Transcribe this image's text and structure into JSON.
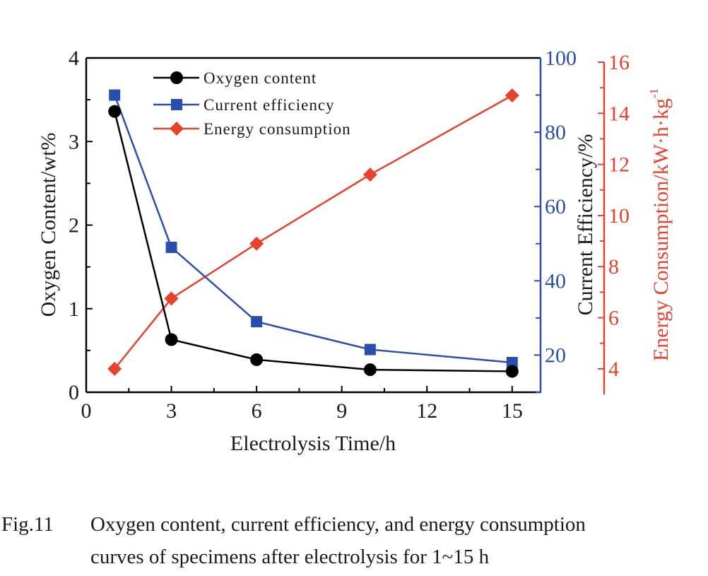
{
  "chart_data": {
    "type": "line",
    "title": "",
    "xlabel": "Electrolysis Time/h",
    "x": [
      1,
      3,
      6,
      10,
      15
    ],
    "xlim": [
      0,
      16
    ],
    "xticks": [
      0,
      3,
      6,
      9,
      12,
      15
    ],
    "xtick_labels": [
      "0",
      "3",
      "6",
      "9",
      "12",
      "15"
    ],
    "axes": {
      "left": {
        "label": "Oxygen Content/wt%",
        "ylim": [
          0,
          4
        ],
        "ticks": [
          0,
          1,
          2,
          3,
          4
        ],
        "tick_labels": [
          "0",
          "1",
          "2",
          "3",
          "4"
        ],
        "color": "#000000"
      },
      "right1": {
        "label": "Current Efficiency/%",
        "ylim": [
          10,
          100
        ],
        "ticks": [
          20,
          40,
          60,
          80,
          100
        ],
        "tick_labels": [
          "20",
          "40",
          "60",
          "80",
          "100"
        ],
        "color": "#2b4eae",
        "label_color": "#000000"
      },
      "right2": {
        "label_main": "Energy Consumption/kW·h·kg",
        "label_sup": "-1",
        "ylim": [
          3,
          16
        ],
        "ticks": [
          4,
          6,
          8,
          10,
          12,
          14,
          16
        ],
        "tick_labels": [
          "4",
          "6",
          "8",
          "10",
          "12",
          "14",
          "16"
        ],
        "color": "#e8412c"
      }
    },
    "series": [
      {
        "name": "Oxygen content",
        "axis": "left",
        "marker": "circle",
        "color": "#000000",
        "values": [
          3.36,
          0.63,
          0.39,
          0.27,
          0.25
        ]
      },
      {
        "name": "Current efficiency",
        "axis": "right1",
        "marker": "square",
        "color": "#2b4eae",
        "values": [
          90,
          49,
          29,
          21.5,
          18
        ]
      },
      {
        "name": "Energy consumption",
        "axis": "right2",
        "marker": "diamond",
        "color": "#e8412c",
        "values": [
          4.0,
          6.75,
          8.9,
          11.6,
          14.7
        ]
      }
    ],
    "legend": {
      "position": "top-left",
      "entries": [
        "Oxygen content",
        "Current efficiency",
        "Energy consumption"
      ]
    },
    "grid": false
  },
  "caption": {
    "figure_number": "Fig.11",
    "line1": "Oxygen content, current efficiency, and energy consumption",
    "line2": "curves of specimens after electrolysis for 1~15 h"
  }
}
